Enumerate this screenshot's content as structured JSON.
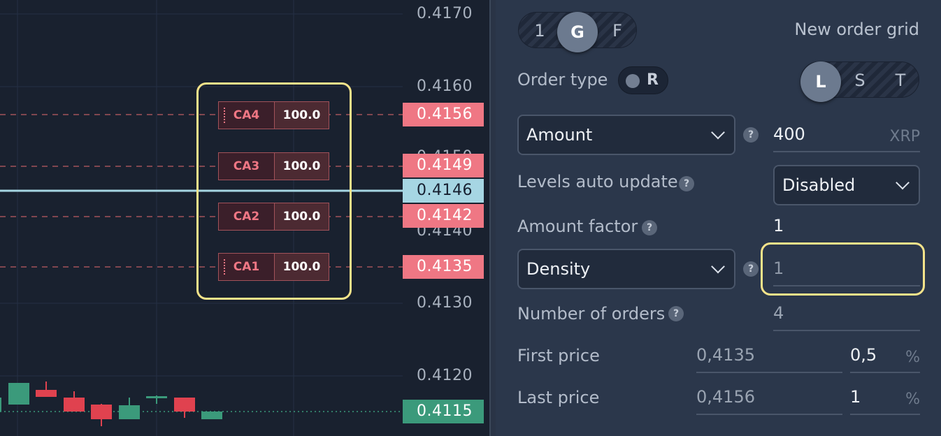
{
  "chart": {
    "price_axis": [
      "0.4170",
      "0.4160",
      "0.4150",
      "0.4140",
      "0.4130",
      "0.4120"
    ],
    "sell_levels": [
      "0.4156",
      "0.4149",
      "0.4142",
      "0.4135"
    ],
    "current_price": "0.4146",
    "last_price": "0.4115",
    "orders": [
      {
        "name": "CA4",
        "amount": "100.0"
      },
      {
        "name": "CA3",
        "amount": "100.0"
      },
      {
        "name": "CA2",
        "amount": "100.0"
      },
      {
        "name": "CA1",
        "amount": "100.0"
      }
    ],
    "colors": {
      "sell": "#ef7784",
      "current": "#a6d6e3",
      "up": "#3b9a7b",
      "down": "#e0424f",
      "highlight": "#f5e38a"
    }
  },
  "panel": {
    "mode_toggle": {
      "options": [
        "1",
        "G",
        "F"
      ],
      "selected": "G"
    },
    "title": "New order grid",
    "order_type": {
      "label": "Order type",
      "toggle_text": "R"
    },
    "side_toggle": {
      "options": [
        "L",
        "S",
        "T"
      ],
      "selected": "L"
    },
    "amount": {
      "select": "Amount",
      "value": "400",
      "unit": "XRP"
    },
    "levels_auto_update": {
      "label": "Levels auto update",
      "value": "Disabled"
    },
    "amount_factor": {
      "label": "Amount factor",
      "value": "1"
    },
    "density": {
      "select": "Density",
      "value": "1"
    },
    "number_of_orders": {
      "label": "Number of orders",
      "value": "4"
    },
    "first_price": {
      "label": "First price",
      "price": "0,4135",
      "percent": "0,5",
      "unit": "%"
    },
    "last_price": {
      "label": "Last price",
      "price": "0,4156",
      "percent": "1",
      "unit": "%"
    },
    "help_glyph": "?"
  }
}
